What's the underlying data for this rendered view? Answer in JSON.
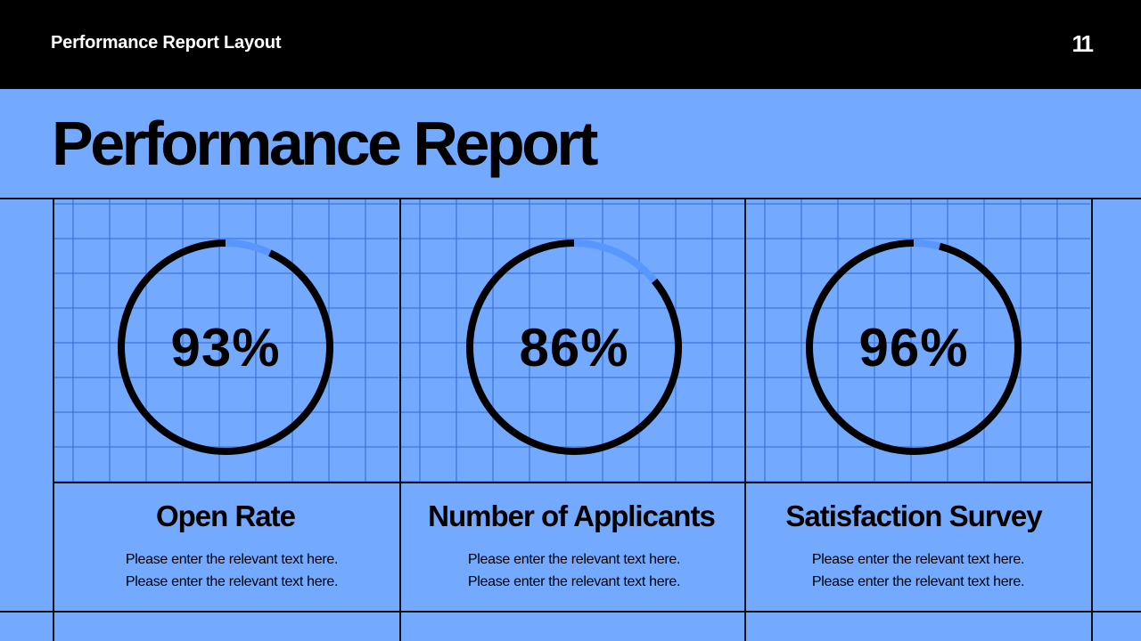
{
  "header": {
    "title": "Performance Report Layout",
    "page_number": "11"
  },
  "main": {
    "title": "Performance Report"
  },
  "colors": {
    "background": "#73aaff",
    "header_bg": "#000000",
    "ring": "#000000",
    "ring_remainder": "#5a96ff",
    "grid_line": "#3a6ed7"
  },
  "cards": [
    {
      "value": "93%",
      "percent": 93,
      "title": "Open Rate",
      "desc_line1": "Please enter the relevant text here.",
      "desc_line2": "Please enter the relevant text here."
    },
    {
      "value": "86%",
      "percent": 86,
      "title": "Number of Applicants",
      "desc_line1": "Please enter the relevant text here.",
      "desc_line2": "Please enter the relevant text here."
    },
    {
      "value": "96%",
      "percent": 96,
      "title": "Satisfaction Survey",
      "desc_line1": "Please enter the relevant text here.",
      "desc_line2": "Please enter the relevant text here."
    }
  ]
}
